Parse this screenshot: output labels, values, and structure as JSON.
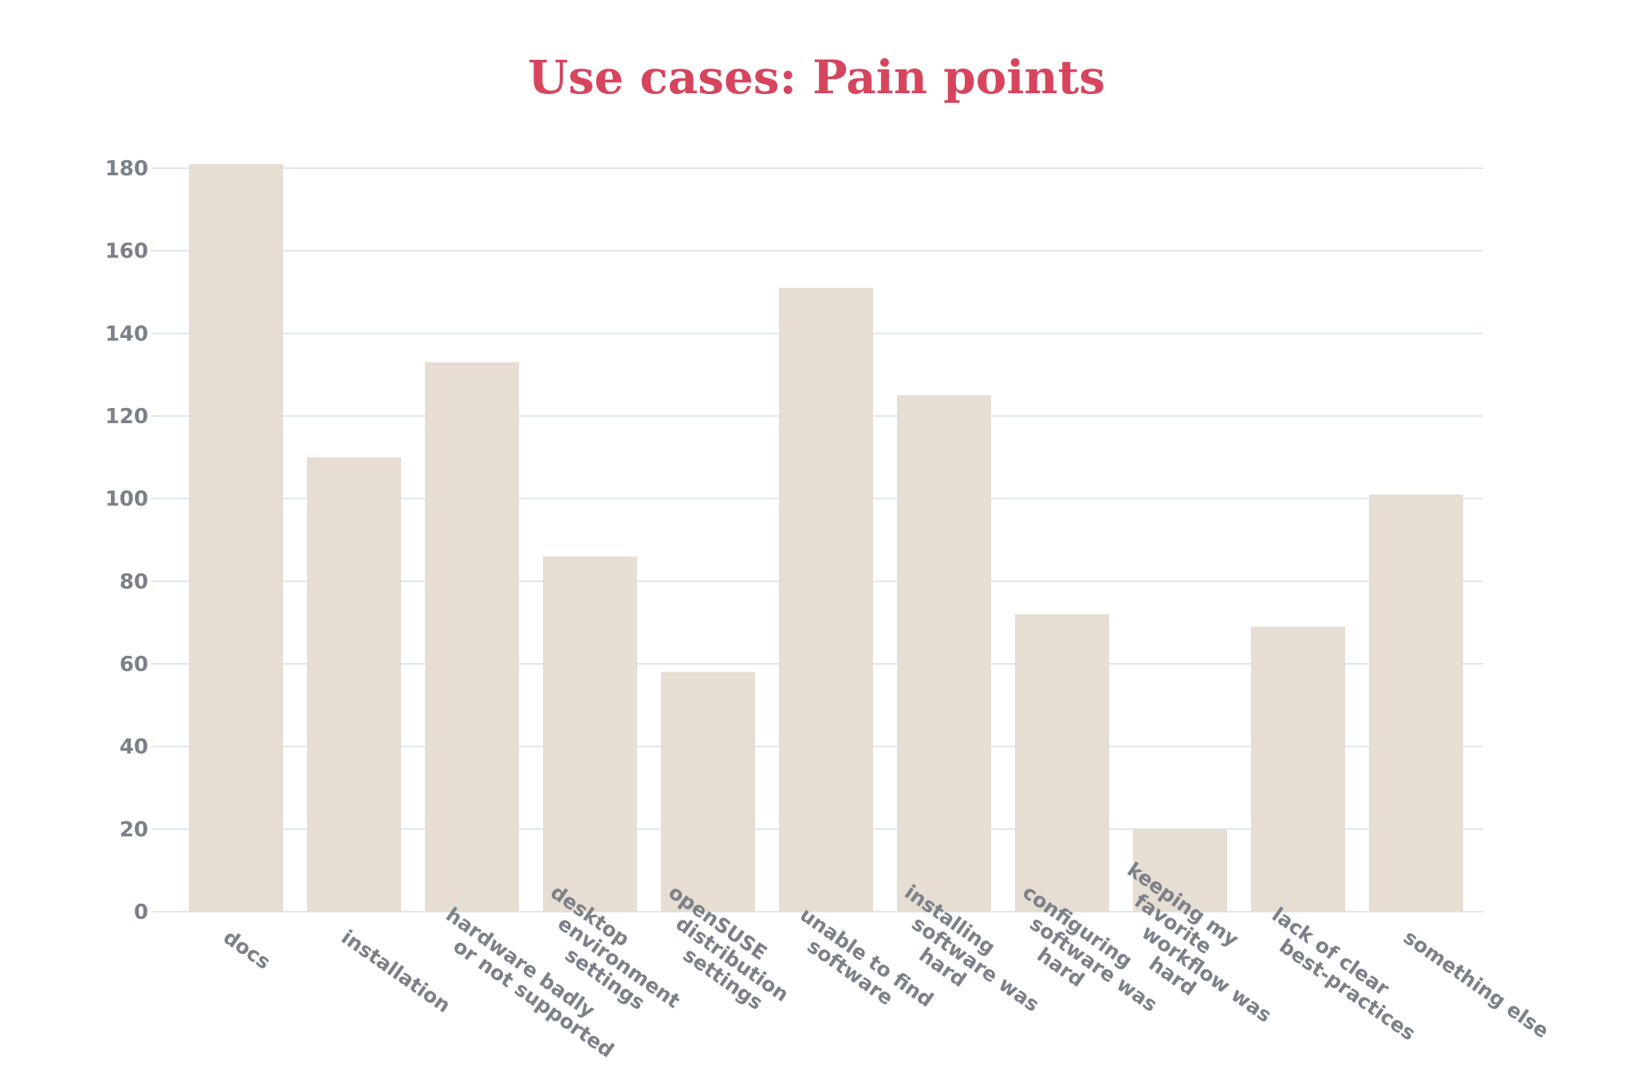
{
  "chart_data": {
    "type": "bar",
    "title": "Use cases: Pain points",
    "xlabel": "",
    "ylabel": "",
    "categories": [
      "docs",
      "installation",
      "hardware badly or not supported",
      "desktop environment settings",
      "openSUSE distribution settings",
      "unable to find software",
      "installing software was hard",
      "configuring software was hard",
      "keeping my favorite workflow was hard",
      "lack of clear best-practices",
      "something else"
    ],
    "category_label_lines": [
      [
        "docs"
      ],
      [
        "installation"
      ],
      [
        "hardware badly",
        "or not supported"
      ],
      [
        "desktop",
        "environment",
        "settings"
      ],
      [
        "openSUSE",
        "distribution",
        "settings"
      ],
      [
        "unable to find",
        "software"
      ],
      [
        "installing",
        "software was",
        "hard"
      ],
      [
        "configuring",
        "software was",
        "hard"
      ],
      [
        "keeping my",
        "favorite",
        "workflow was",
        "hard"
      ],
      [
        "lack of clear",
        "best-practices"
      ],
      [
        "something else"
      ]
    ],
    "values": [
      181,
      110,
      133,
      86,
      58,
      151,
      125,
      72,
      20,
      69,
      101
    ],
    "ylim": [
      0,
      180
    ],
    "yticks": [
      0,
      20,
      40,
      60,
      80,
      100,
      120,
      140,
      160,
      180
    ],
    "grid": true,
    "legend": "none",
    "colors": {
      "bar": "#e6ddd3",
      "grid": "#dde7ee",
      "title": "#d6455d",
      "tick_text": "#7b8089"
    }
  }
}
